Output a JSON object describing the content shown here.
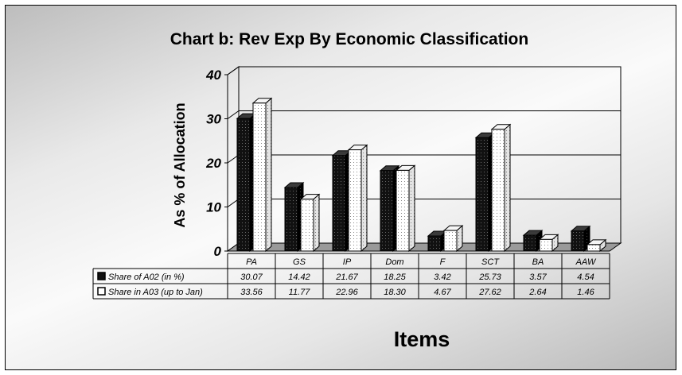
{
  "chart_data": {
    "type": "bar",
    "title": "Chart b: Rev Exp By Economic Classification",
    "xlabel": "Items",
    "ylabel": "As % of Allocation",
    "ylim": [
      0,
      40
    ],
    "yticks": [
      "0",
      "10",
      "20",
      "30",
      "40"
    ],
    "grid": true,
    "legend_placement": "data-table-left",
    "categories": [
      "PA",
      "GS",
      "IP",
      "Dom",
      "F",
      "SCT",
      "BA",
      "AAW"
    ],
    "series": [
      {
        "name": "Share of A02 (in %)",
        "values": [
          30.07,
          14.42,
          21.67,
          18.25,
          3.42,
          25.73,
          3.57,
          4.54
        ],
        "labels": [
          "30.07",
          "14.42",
          "21.67",
          "18.25",
          "3.42",
          "25.73",
          "3.57",
          "4.54"
        ],
        "color": "#111111"
      },
      {
        "name": "Share in A03 (up to Jan)",
        "values": [
          33.56,
          11.77,
          22.96,
          18.3,
          4.67,
          27.62,
          2.64,
          1.46
        ],
        "labels": [
          "33.56",
          "11.77",
          "22.96",
          "18.30",
          "4.67",
          "27.62",
          "2.64",
          "1.46"
        ],
        "color": "#ffffff"
      }
    ]
  }
}
